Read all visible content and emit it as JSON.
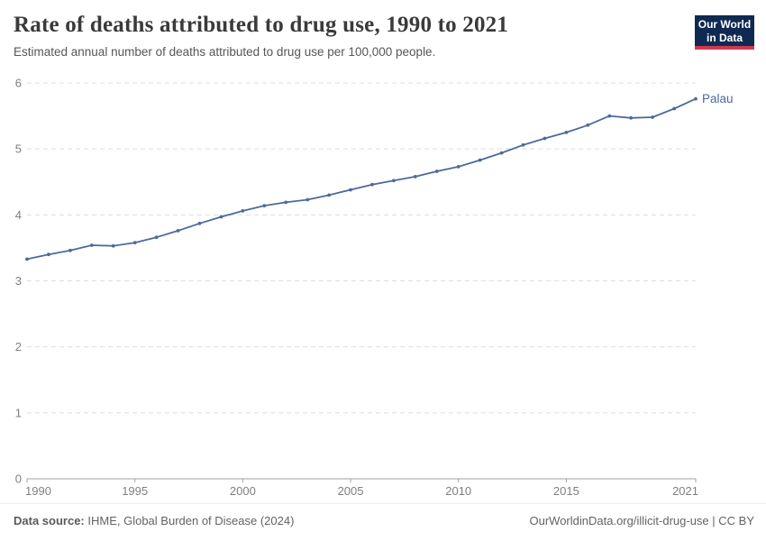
{
  "header": {
    "title": "Rate of deaths attributed to drug use, 1990 to 2021",
    "subtitle": "Estimated annual number of deaths attributed to drug use per 100,000 people.",
    "logo": {
      "line1": "Our World",
      "line2": "in Data"
    }
  },
  "chart_data": {
    "type": "line",
    "title": "Rate of deaths attributed to drug use, 1990 to 2021",
    "xlabel": "",
    "ylabel": "",
    "xlim": [
      1990,
      2021
    ],
    "ylim": [
      0,
      6
    ],
    "x_ticks": [
      1990,
      1995,
      2000,
      2005,
      2010,
      2015,
      2021
    ],
    "y_ticks": [
      0,
      1,
      2,
      3,
      4,
      5,
      6
    ],
    "grid": "horizontal-dashed",
    "legend_position": "end-of-line-label",
    "series": [
      {
        "name": "Palau",
        "color": "#4C6A9C",
        "x": [
          1990,
          1991,
          1992,
          1993,
          1994,
          1995,
          1996,
          1997,
          1998,
          1999,
          2000,
          2001,
          2002,
          2003,
          2004,
          2005,
          2006,
          2007,
          2008,
          2009,
          2010,
          2011,
          2012,
          2013,
          2014,
          2015,
          2016,
          2017,
          2018,
          2019,
          2020,
          2021
        ],
        "values": [
          3.33,
          3.4,
          3.46,
          3.54,
          3.53,
          3.58,
          3.66,
          3.76,
          3.87,
          3.97,
          4.06,
          4.14,
          4.19,
          4.23,
          4.3,
          4.38,
          4.46,
          4.52,
          4.58,
          4.66,
          4.73,
          4.83,
          4.94,
          5.06,
          5.16,
          5.25,
          5.36,
          5.5,
          5.47,
          5.48,
          5.61,
          5.76
        ]
      }
    ]
  },
  "colors": {
    "line": "#4C6A9C",
    "grid": "#dedede",
    "axis": "#a1a1a1",
    "tick_label": "#7f7f7f",
    "logo_background": "#0F2A52",
    "logo_stripe": "#D0394B"
  },
  "footer": {
    "source_label": "Data source:",
    "source_text": "IHME, Global Burden of Disease (2024)",
    "credit": "OurWorldinData.org/illicit-drug-use | CC BY"
  }
}
